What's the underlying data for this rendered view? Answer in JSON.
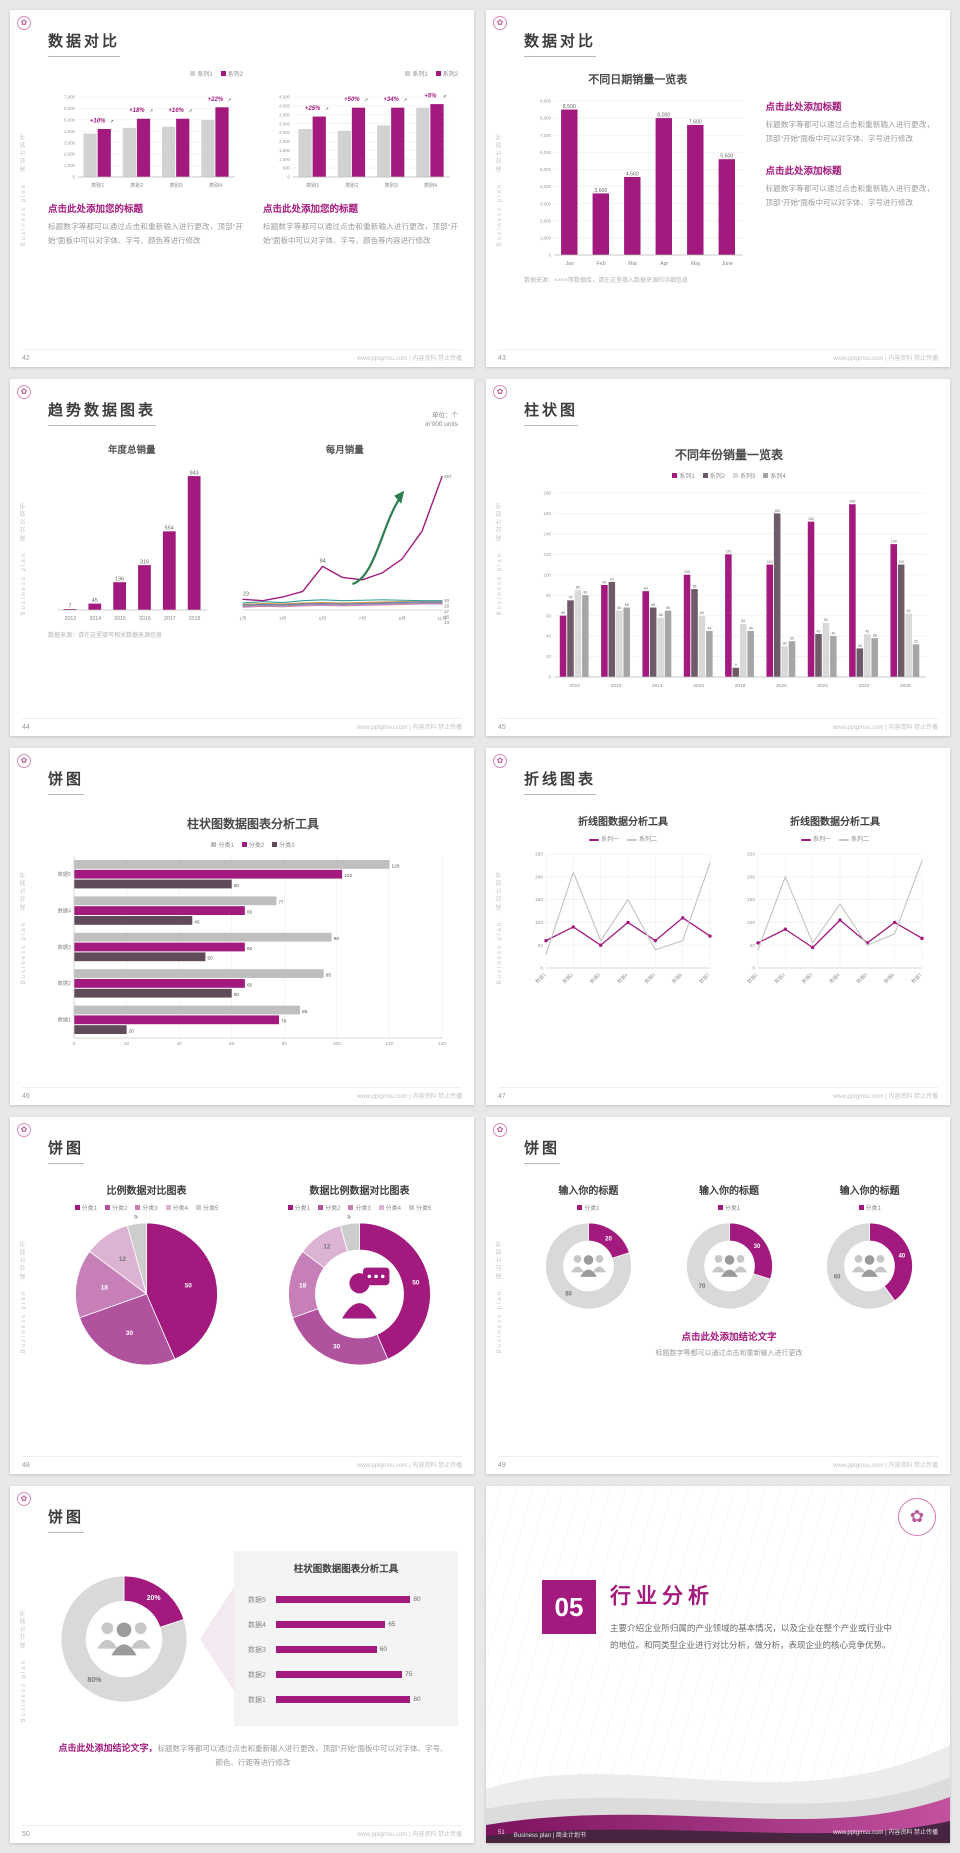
{
  "shared": {
    "side_text": "Business plan · 商业计划书",
    "footer_site": "www.pptgmsu.com | 内容资料 禁止传播",
    "logo_glyph": "✿"
  },
  "slides": {
    "s42": {
      "page_no": "42",
      "title": "数据对比",
      "left": {
        "conclusion_title": "点击此处添加您的标题",
        "conclusion_body": "标题数字等都可以通过点击和重新输入进行更改，顶部“开始”面板中可以对字体、字号、颜色等进行修改"
      },
      "right": {
        "conclusion_title": "点击此处添加您的标题",
        "conclusion_body": "标题数字等都可以通过点击和重新输入进行更改，顶部“开始”面板中可以对字体、字号、颜色等内容进行修改"
      }
    },
    "s43": {
      "page_no": "43",
      "title": "数据对比",
      "chart_title": "不同日期销量一览表",
      "source_note": "数据来源：××××等数据库，请在这里填入数据来源的详细信息",
      "blocks": [
        {
          "title": "点击此处添加标题",
          "body": "标题数字等都可以通过点击和重新输入进行更改，顶部“开始”面板中可以对字体、字号进行修改"
        },
        {
          "title": "点击此处添加标题",
          "body": "标题数字等都可以通过点击和重新输入进行更改，顶部“开始”面板中可以对字体、字号进行修改"
        }
      ]
    },
    "s44": {
      "page_no": "44",
      "title": "趋势数据图表",
      "unit_line1": "单位：个",
      "unit_line2": "in'000 units",
      "left_subtitle": "年度总销量",
      "right_subtitle": "每月销量",
      "source_note": "数据来源：请在这里填写相关数据来源信息"
    },
    "s45": {
      "page_no": "45",
      "title": "柱状图",
      "chart_title": "不同年份销量一览表"
    },
    "s46": {
      "page_no": "46",
      "title": "饼图",
      "chart_title": "柱状图数据图表分析工具"
    },
    "s47": {
      "page_no": "47",
      "title": "折线图表",
      "left_title": "折线图数据分析工具",
      "right_title": "折线图数据分析工具"
    },
    "s48": {
      "page_no": "48",
      "title": "饼图",
      "left_title": "比例数据对比图表",
      "right_title": "数据比例数据对比图表"
    },
    "s49": {
      "page_no": "49",
      "title": "饼图",
      "titles": [
        "输入你的标题",
        "输入你的标题",
        "输入你的标题"
      ],
      "conclusion_title": "点击此处添加结论文字",
      "conclusion_body": "标题数字等都可以通过点击和重新输入进行更改"
    },
    "s50": {
      "page_no": "50",
      "title": "饼图",
      "panel_title": "柱状图数据图表分析工具",
      "conclusion_accent": "点击此处添加结论文字，",
      "conclusion_body": "标题数字等都可以通过点击和重新输入进行更改，顶部“开始”面板中可以对字体、字号、颜色、行距等进行修改"
    },
    "s51": {
      "page_no": "51",
      "number": "05",
      "title": "行业分析",
      "body": "主要介绍企业所归属的产业领域的基本情况，以及企业在整个产业或行业中的地位。和同类型企业进行对比分析，做分析，表现企业的核心竞争优势。",
      "footer": "Business plan | 商业计划书"
    }
  },
  "charts": {
    "c42a": {
      "type": "barv",
      "categories": [
        "类别1",
        "类别2",
        "类别3",
        "类别4"
      ],
      "series": [
        {
          "name": "系列1",
          "color": "#d2d2d2",
          "values": [
            3800,
            4300,
            4400,
            5000
          ]
        },
        {
          "name": "系列2",
          "color": "#a21a7d",
          "values": [
            4200,
            5100,
            5100,
            6100
          ]
        }
      ],
      "ylim": [
        0,
        7000
      ],
      "yticks": [
        7000,
        6000,
        5000,
        4000,
        3000,
        2000,
        1000,
        0
      ],
      "comma": true,
      "pct": [
        "+10%",
        "+18%",
        "+16%",
        "+22%"
      ],
      "legend": {
        "pos": "right"
      }
    },
    "c42b": {
      "type": "barv",
      "categories": [
        "类别1",
        "类别2",
        "类别3",
        "类别4"
      ],
      "series": [
        {
          "name": "系列1",
          "color": "#d2d2d2",
          "values": [
            2700,
            2600,
            2900,
            3900
          ]
        },
        {
          "name": "系列2",
          "color": "#a21a7d",
          "values": [
            3400,
            3900,
            3900,
            4100
          ]
        }
      ],
      "ylim": [
        0,
        4500
      ],
      "yticks": [
        4500,
        4000,
        3500,
        3000,
        2500,
        2000,
        1500,
        1000,
        500,
        0
      ],
      "comma": true,
      "pct": [
        "+25%",
        "+50%",
        "+34%",
        "+5%"
      ],
      "legend": {
        "pos": "right"
      }
    },
    "c43": {
      "type": "barv",
      "categories": [
        "Jan",
        "Feb",
        "Mar",
        "Apr",
        "May",
        "June"
      ],
      "series": [
        {
          "name": "销量",
          "color": "#a21a7d",
          "values": [
            8500,
            3600,
            4560,
            8000,
            7600,
            5600
          ]
        }
      ],
      "ylim": [
        0,
        9000
      ],
      "yticks": [
        9000,
        8000,
        7000,
        6000,
        5000,
        4000,
        3000,
        2000,
        1000,
        0
      ],
      "comma": true,
      "value_labels": true,
      "vl_size": 5.2
    },
    "c44a": {
      "type": "barv",
      "categories": [
        "2013",
        "2014",
        "2015",
        "2016",
        "2017",
        "2018"
      ],
      "series": [
        {
          "name": "年度总销量",
          "color": "#a21a7d",
          "values": [
            7,
            45,
            196,
            316,
            554,
            943
          ]
        }
      ],
      "ylim": [
        0,
        1000
      ],
      "yticks": [],
      "value_labels": true,
      "vl_size": 5.4
    },
    "c44b": {
      "type": "line",
      "x_labels": [
        "1月",
        "",
        "3月",
        "",
        "5月",
        "",
        "7月",
        "",
        "9月",
        "",
        "11月"
      ],
      "ylim": [
        0,
        310
      ],
      "pad_r": 16,
      "arrow": true,
      "series": [
        {
          "name": "主线",
          "color": "#a21a7d",
          "w": 1.4,
          "values": [
            23,
            20,
            28,
            40,
            94,
            70,
            65,
            80,
            110,
            170,
            287
          ],
          "end_label": "287"
        },
        {
          "name": "线2",
          "color": "#2fa39a",
          "values": [
            15,
            18,
            16,
            20,
            22,
            20,
            21,
            22,
            21,
            20,
            20
          ],
          "end_label": "20"
        },
        {
          "name": "线3",
          "color": "#e08a3c",
          "values": [
            12,
            14,
            13,
            15,
            16,
            15,
            16,
            17,
            18,
            18,
            18
          ],
          "end_label": "18"
        },
        {
          "name": "线4",
          "color": "#5b7fbf",
          "values": [
            10,
            12,
            11,
            13,
            14,
            13,
            14,
            15,
            16,
            17,
            17
          ],
          "end_label": "17"
        },
        {
          "name": "线5",
          "color": "#9a9a9a",
          "values": [
            8,
            10,
            9,
            11,
            12,
            11,
            12,
            13,
            14,
            15,
            15
          ],
          "end_label": "15"
        },
        {
          "name": "线6",
          "color": "#c77fb8",
          "values": [
            6,
            8,
            7,
            9,
            10,
            9,
            10,
            11,
            12,
            13,
            13
          ],
          "end_label": "13"
        }
      ],
      "ann": [
        {
          "i": 0,
          "s": 0,
          "text": "23"
        },
        {
          "i": 4,
          "s": 0,
          "text": "94"
        }
      ]
    },
    "c45": {
      "type": "barv",
      "categories": [
        "2010",
        "2012",
        "2014",
        "2016",
        "2018",
        "2020",
        "2022",
        "2024",
        "2026"
      ],
      "series": [
        {
          "name": "系列1",
          "color": "#a21a7d",
          "values": [
            60,
            90,
            84,
            100,
            120,
            110,
            152,
            169,
            130
          ]
        },
        {
          "name": "系列2",
          "color": "#6e5a69",
          "values": [
            75,
            93,
            68,
            86,
            9,
            160,
            42,
            28,
            110
          ]
        },
        {
          "name": "系列3",
          "color": "#d9d9d9",
          "values": [
            85,
            65,
            58,
            60,
            52,
            30,
            53,
            42,
            62
          ]
        },
        {
          "name": "系列4",
          "color": "#a6a6a6",
          "values": [
            80,
            68,
            65,
            45,
            45,
            35,
            40,
            38,
            32
          ]
        }
      ],
      "ylim": [
        0,
        180
      ],
      "yticks": [
        180,
        160,
        140,
        120,
        100,
        80,
        60,
        40,
        20,
        0
      ],
      "value_labels": true,
      "vl_size": 3.6,
      "cat_size": 4.8,
      "legend": {
        "pos": "center"
      }
    },
    "c46": {
      "type": "barh",
      "categories": [
        "数据5",
        "数据4",
        "数据3",
        "数据2",
        "数据1"
      ],
      "series": [
        {
          "name": "分类1",
          "color": "#bfbfbf",
          "values": [
            120,
            77,
            98,
            95,
            86
          ]
        },
        {
          "name": "分类2",
          "color": "#a21a7d",
          "values": [
            102,
            65,
            65,
            65,
            78
          ]
        },
        {
          "name": "分类3",
          "color": "#5f4b5a",
          "values": [
            60,
            45,
            50,
            60,
            20
          ]
        }
      ],
      "xlim": [
        0,
        140
      ],
      "xticks": [
        0,
        20,
        40,
        60,
        80,
        100,
        120,
        140
      ],
      "legend": {
        "pos": "center"
      }
    },
    "c47a": {
      "type": "line",
      "x_labels": [
        "数据1",
        "数据2",
        "数据3",
        "数据4",
        "数据5",
        "数据6",
        "数据7"
      ],
      "ylim": [
        0,
        250
      ],
      "yticks": [
        250,
        200,
        150,
        100,
        50,
        0
      ],
      "rot": true,
      "grid_v": true,
      "series": [
        {
          "name": "系列一",
          "color": "#a21a7d",
          "dots": true,
          "w": 1.3,
          "values": [
            60,
            90,
            50,
            100,
            60,
            110,
            70
          ]
        },
        {
          "name": "系列二",
          "color": "#c6c6c6",
          "w": 1.2,
          "values": [
            30,
            210,
            60,
            150,
            40,
            60,
            230
          ]
        }
      ],
      "legend": {
        "pos": "center"
      }
    },
    "c47b": {
      "type": "line",
      "x_labels": [
        "数据1",
        "数据2",
        "数据3",
        "数据4",
        "数据5",
        "数据6",
        "数据7"
      ],
      "ylim": [
        0,
        250
      ],
      "yticks": [
        250,
        200,
        150,
        100,
        50,
        0
      ],
      "rot": true,
      "grid_v": true,
      "series": [
        {
          "name": "系列一",
          "color": "#a21a7d",
          "dots": true,
          "w": 1.3,
          "values": [
            55,
            85,
            45,
            105,
            55,
            100,
            65
          ]
        },
        {
          "name": "系列二",
          "color": "#c6c6c6",
          "w": 1.2,
          "values": [
            40,
            200,
            55,
            140,
            50,
            75,
            235
          ]
        }
      ],
      "legend": {
        "pos": "center"
      }
    },
    "c48a": {
      "type": "pie",
      "values": [
        50,
        30,
        18,
        12,
        5
      ],
      "colors": [
        "#a21a7d",
        "#b1529e",
        "#c77fb8",
        "#ddb3d3",
        "#cdcdcd"
      ],
      "ls": 6.5,
      "legend": {
        "pos": "center",
        "items": [
          {
            "label": "分类1",
            "color": "#a21a7d"
          },
          {
            "label": "分类2",
            "color": "#b1529e"
          },
          {
            "label": "分类3",
            "color": "#c77fb8"
          },
          {
            "label": "分类4",
            "color": "#ddb3d3"
          },
          {
            "label": "分类5",
            "color": "#cdcdcd"
          }
        ]
      }
    },
    "c48b": {
      "type": "pie",
      "values": [
        50,
        30,
        18,
        12,
        5
      ],
      "colors": [
        "#a21a7d",
        "#b1529e",
        "#c77fb8",
        "#ddb3d3",
        "#cdcdcd"
      ],
      "inner": 0.62,
      "icon": "person-chat",
      "ls": 6.5,
      "legend": {
        "pos": "center",
        "items": [
          {
            "label": "分类1",
            "color": "#a21a7d"
          },
          {
            "label": "分类2",
            "color": "#b1529e"
          },
          {
            "label": "分类3",
            "color": "#c77fb8"
          },
          {
            "label": "分类4",
            "color": "#ddb3d3"
          },
          {
            "label": "分类5",
            "color": "#cdcdcd"
          }
        ]
      }
    },
    "c49a": {
      "type": "pie",
      "values": [
        20,
        80
      ],
      "colors": [
        "#a21a7d",
        "#d9d9d9"
      ],
      "inner": 0.58,
      "icon": "people",
      "ls": 6,
      "legend": {
        "pos": "center",
        "items": [
          {
            "label": "分类1",
            "color": "#a21a7d"
          }
        ]
      }
    },
    "c49b": {
      "type": "pie",
      "values": [
        30,
        70
      ],
      "colors": [
        "#a21a7d",
        "#d9d9d9"
      ],
      "inner": 0.58,
      "icon": "people",
      "ls": 6,
      "legend": {
        "pos": "center",
        "items": [
          {
            "label": "分类1",
            "color": "#a21a7d"
          }
        ]
      }
    },
    "c49c": {
      "type": "pie",
      "values": [
        40,
        60
      ],
      "colors": [
        "#a21a7d",
        "#d9d9d9"
      ],
      "inner": 0.58,
      "icon": "people",
      "ls": 6,
      "legend": {
        "pos": "center",
        "items": [
          {
            "label": "分类1",
            "color": "#a21a7d"
          }
        ]
      }
    },
    "c50a": {
      "type": "pie",
      "values": [
        20,
        80
      ],
      "colors": [
        "#a21a7d",
        "#d9d9d9"
      ],
      "inner": 0.6,
      "icon": "people",
      "slice_labels": [
        "20%",
        "80%"
      ],
      "ls": 7
    },
    "c50b": {
      "type": "rows",
      "categories": [
        "数据5",
        "数据4",
        "数据3",
        "数据2",
        "数据1"
      ],
      "values": [
        80,
        65,
        60,
        75,
        80
      ],
      "max": 100
    }
  }
}
